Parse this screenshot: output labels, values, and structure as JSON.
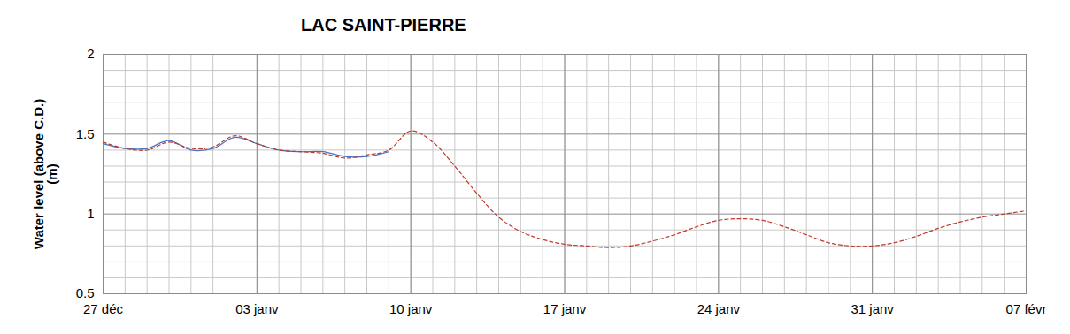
{
  "chart_data": {
    "type": "line",
    "title": "LAC SAINT-PIERRE",
    "y_label": "Water level (above C.D.)\n(m)",
    "categories": [
      "27 déc",
      null,
      null,
      null,
      null,
      null,
      null,
      "03 janv",
      null,
      null,
      null,
      null,
      null,
      null,
      "10 janv",
      null,
      null,
      null,
      null,
      null,
      null,
      "17 janv",
      null,
      null,
      null,
      null,
      null,
      null,
      "24 janv",
      null,
      null,
      null,
      null,
      null,
      null,
      "31 janv",
      null,
      null,
      null,
      null,
      null,
      null,
      "07 févr"
    ],
    "series": [
      {
        "color": "#4472c4",
        "line_style": "solid",
        "values": [
          1.44,
          1.41,
          1.41,
          1.46,
          1.4,
          1.41,
          1.48,
          1.44,
          1.4,
          1.39,
          1.39,
          1.36,
          1.36,
          1.39,
          null,
          null,
          null,
          null,
          null,
          null,
          null,
          null,
          null,
          null,
          null,
          null,
          null,
          null,
          null,
          null,
          null,
          null,
          null,
          null,
          null,
          null,
          null,
          null,
          null,
          null,
          null,
          null,
          null
        ]
      },
      {
        "color": "#c0392b",
        "line_style": "dashed",
        "values": [
          1.45,
          1.41,
          1.4,
          1.45,
          1.41,
          1.42,
          1.49,
          1.44,
          1.4,
          1.39,
          1.38,
          1.35,
          1.37,
          1.4,
          1.52,
          1.45,
          1.3,
          1.13,
          0.98,
          0.89,
          0.84,
          0.81,
          0.8,
          0.79,
          0.8,
          0.83,
          0.87,
          0.92,
          0.96,
          0.97,
          0.96,
          0.92,
          0.87,
          0.82,
          0.8,
          0.8,
          0.82,
          0.86,
          0.91,
          0.95,
          0.98,
          1.0,
          1.02
        ]
      }
    ],
    "ylim": [
      0.5,
      2
    ],
    "yticks": [
      0.5,
      1,
      1.5,
      2
    ],
    "grid": true
  }
}
